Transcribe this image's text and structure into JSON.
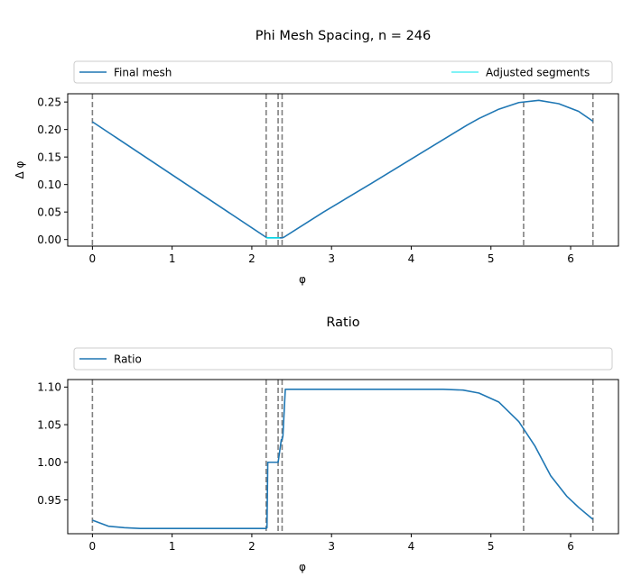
{
  "chart_data": [
    {
      "type": "line",
      "title": "Phi Mesh Spacing, n = 246",
      "xlabel": "φ",
      "ylabel": "Δ φ",
      "xlim": [
        -0.31,
        6.6
      ],
      "ylim": [
        -0.012,
        0.265
      ],
      "xticks": [
        0,
        1,
        2,
        3,
        4,
        5,
        6
      ],
      "yticks": [
        0.0,
        0.05,
        0.1,
        0.15,
        0.2,
        0.25
      ],
      "ytick_labels": [
        "0.00",
        "0.05",
        "0.10",
        "0.15",
        "0.20",
        "0.25"
      ],
      "legend_placement": "above-plot",
      "vlines": [
        0,
        2.18,
        2.33,
        2.38,
        5.41,
        6.28
      ],
      "series": [
        {
          "name": "Final mesh",
          "color": "#1f77b4",
          "x": [
            0,
            2.18,
            2.2,
            2.38,
            2.4,
            2.9,
            3.5,
            4.1,
            4.7,
            4.85,
            5.1,
            5.35,
            5.6,
            5.85,
            6.1,
            6.28
          ],
          "y": [
            0.214,
            0.004,
            0.003,
            0.003,
            0.004,
            0.05,
            0.102,
            0.155,
            0.208,
            0.22,
            0.237,
            0.249,
            0.253,
            0.247,
            0.233,
            0.215
          ]
        },
        {
          "name": "Adjusted segments",
          "color": "#00e5ee",
          "x": [
            2.18,
            2.35
          ],
          "y": [
            0.003,
            0.003
          ]
        }
      ]
    },
    {
      "type": "line",
      "title": "Ratio",
      "xlabel": "φ",
      "ylabel": "",
      "xlim": [
        -0.31,
        6.6
      ],
      "ylim": [
        0.905,
        1.11
      ],
      "xticks": [
        0,
        1,
        2,
        3,
        4,
        5,
        6
      ],
      "yticks": [
        0.95,
        1.0,
        1.05,
        1.1
      ],
      "ytick_labels": [
        "0.95",
        "1.00",
        "1.05",
        "1.10"
      ],
      "legend_placement": "above-plot",
      "vlines": [
        0,
        2.18,
        2.33,
        2.38,
        5.41,
        6.28
      ],
      "series": [
        {
          "name": "Ratio",
          "color": "#1f77b4",
          "x": [
            0,
            0.2,
            0.4,
            0.6,
            1.0,
            1.5,
            2.0,
            2.18,
            2.19,
            2.2,
            2.32,
            2.33,
            2.35,
            2.37,
            2.38,
            2.39,
            2.42,
            3.0,
            4.0,
            4.4,
            4.65,
            4.85,
            5.1,
            5.35,
            5.55,
            5.75,
            5.95,
            6.1,
            6.28
          ],
          "y": [
            0.923,
            0.915,
            0.913,
            0.912,
            0.912,
            0.912,
            0.912,
            0.912,
            0.913,
            1.0,
            1.0,
            1.0,
            1.015,
            1.03,
            1.03,
            1.035,
            1.097,
            1.097,
            1.097,
            1.097,
            1.096,
            1.092,
            1.08,
            1.054,
            1.022,
            0.982,
            0.955,
            0.94,
            0.924
          ]
        }
      ]
    }
  ]
}
